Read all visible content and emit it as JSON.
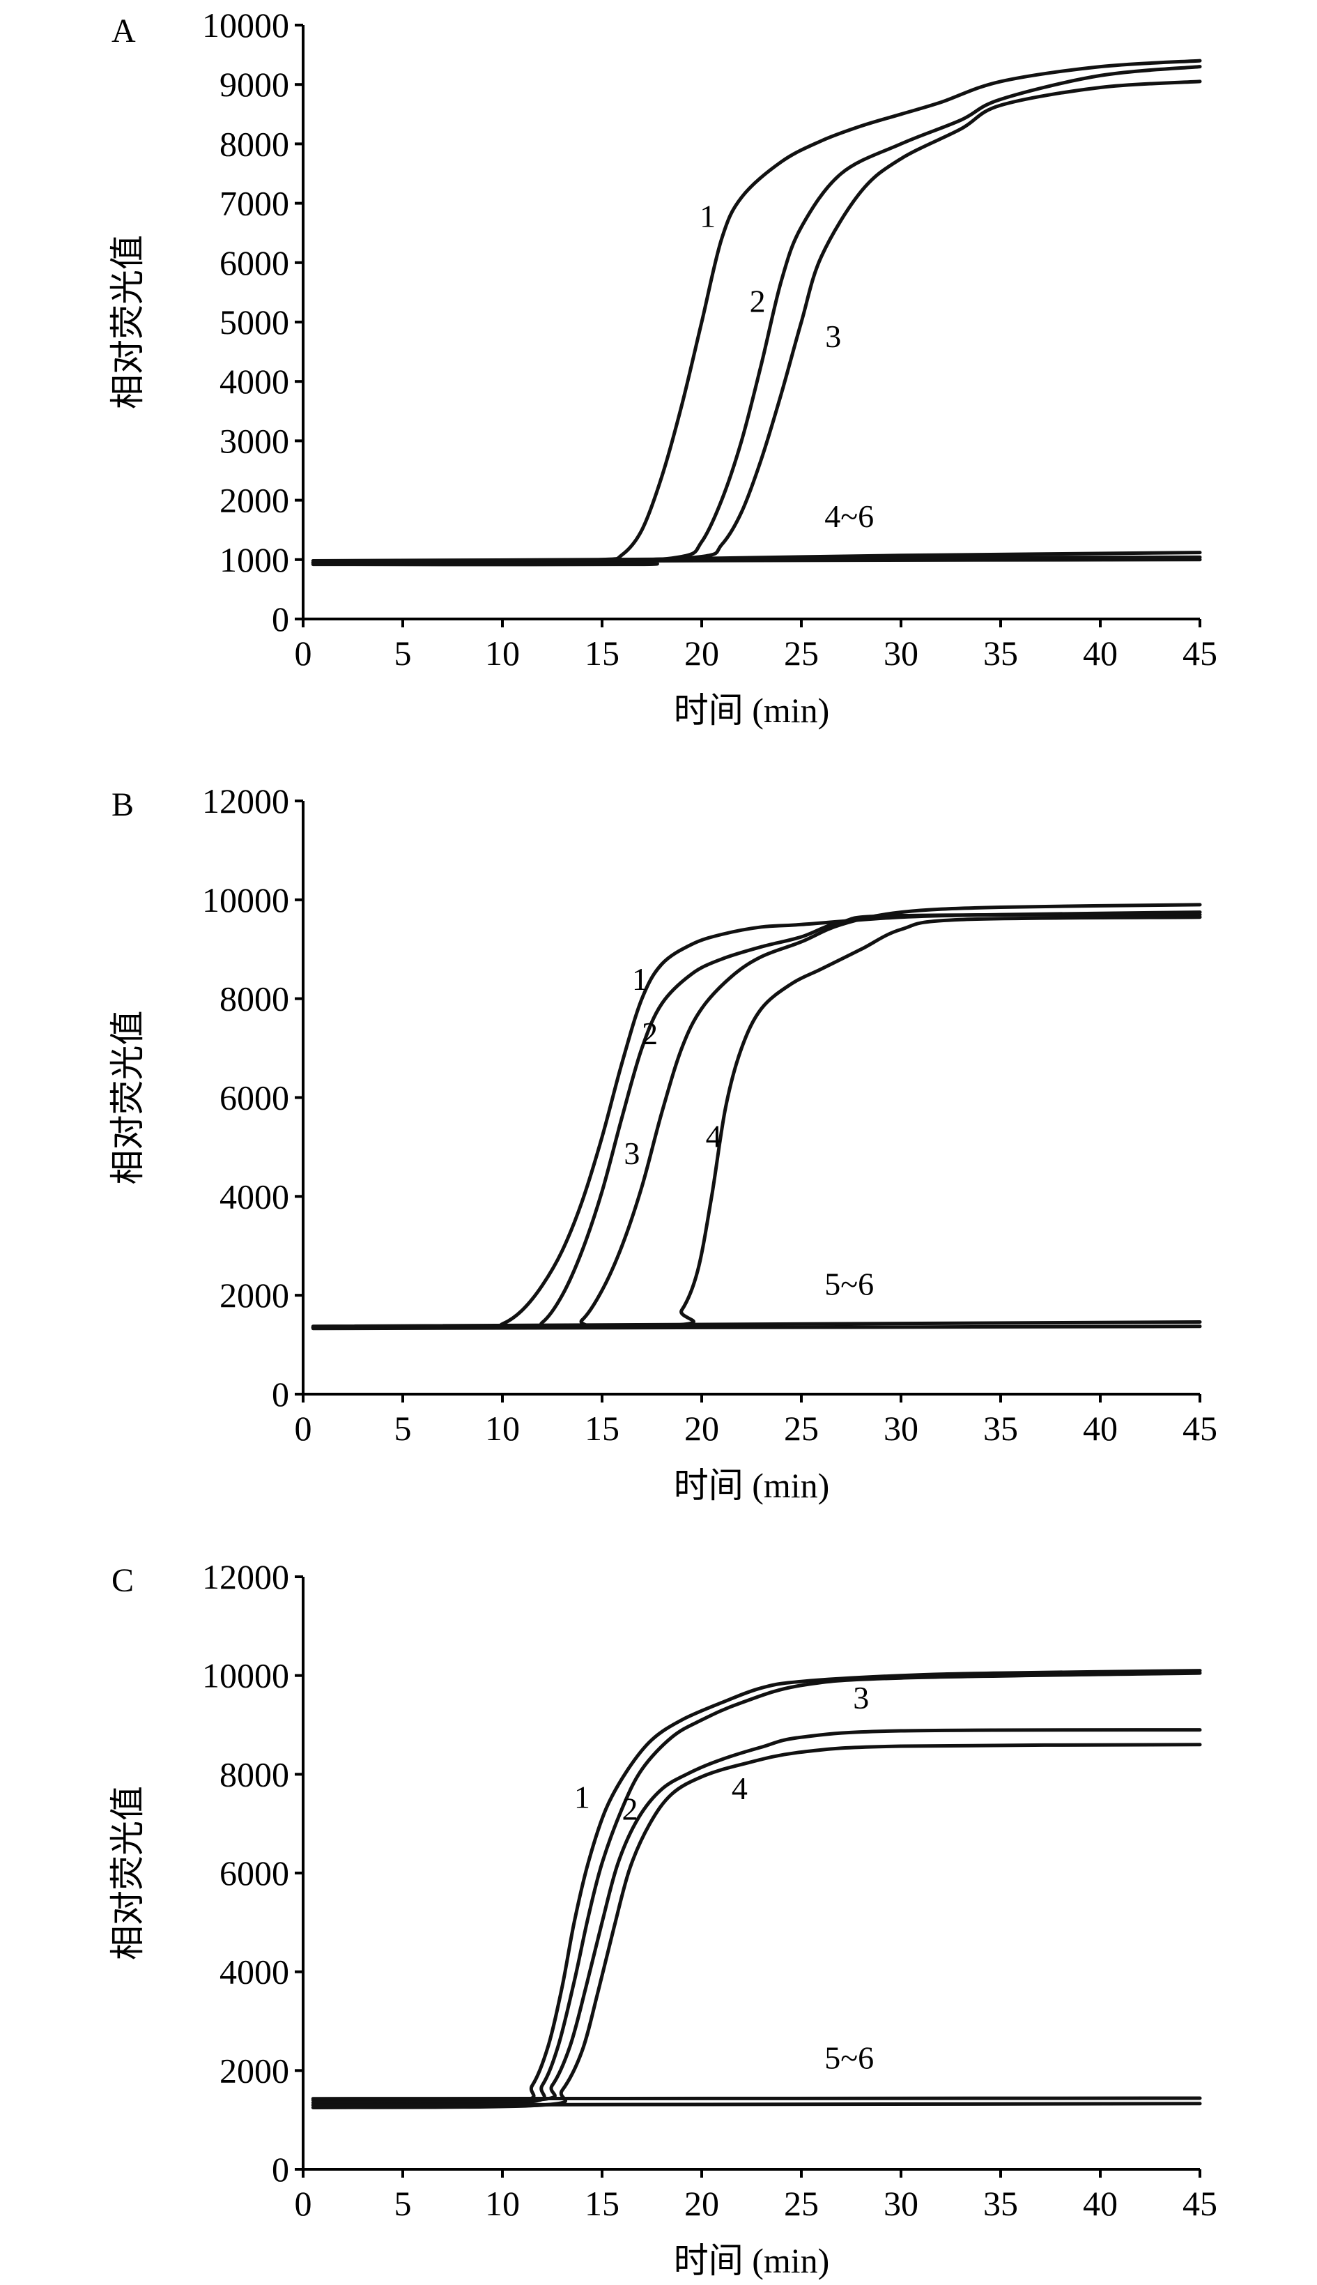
{
  "chart_data": [
    {
      "type": "line",
      "panel": "A",
      "xlabel": "时间 (min)",
      "ylabel": "相对荧光值",
      "xlim": [
        0,
        45
      ],
      "ylim": [
        0,
        10000
      ],
      "xticks": [
        0,
        5,
        10,
        15,
        20,
        25,
        30,
        35,
        40,
        45
      ],
      "yticks": [
        0,
        1000,
        2000,
        3000,
        4000,
        5000,
        6000,
        7000,
        8000,
        9000,
        10000
      ],
      "grid": false,
      "series": [
        {
          "name": "1",
          "points": [
            [
              0.5,
              950
            ],
            [
              10,
              980
            ],
            [
              15,
              1000
            ],
            [
              16,
              1080
            ],
            [
              17,
              1500
            ],
            [
              18,
              2400
            ],
            [
              19,
              3600
            ],
            [
              20,
              5000
            ],
            [
              21,
              6400
            ],
            [
              22,
              7100
            ],
            [
              24,
              7700
            ],
            [
              26,
              8050
            ],
            [
              28,
              8300
            ],
            [
              30,
              8500
            ],
            [
              32,
              8700
            ],
            [
              35,
              9050
            ],
            [
              40,
              9300
            ],
            [
              45,
              9400
            ]
          ]
        },
        {
          "name": "2",
          "points": [
            [
              0.5,
              950
            ],
            [
              15,
              990
            ],
            [
              19,
              1050
            ],
            [
              20,
              1300
            ],
            [
              21,
              2000
            ],
            [
              22,
              3000
            ],
            [
              23,
              4300
            ],
            [
              24,
              5700
            ],
            [
              25,
              6600
            ],
            [
              27,
              7500
            ],
            [
              30,
              8000
            ],
            [
              33,
              8400
            ],
            [
              35,
              8750
            ],
            [
              40,
              9150
            ],
            [
              45,
              9300
            ]
          ]
        },
        {
          "name": "3",
          "points": [
            [
              0.5,
              950
            ],
            [
              15,
              990
            ],
            [
              20,
              1050
            ],
            [
              21,
              1250
            ],
            [
              22,
              1800
            ],
            [
              23,
              2700
            ],
            [
              24,
              3800
            ],
            [
              25,
              5000
            ],
            [
              26,
              6100
            ],
            [
              28,
              7200
            ],
            [
              30,
              7750
            ],
            [
              33,
              8250
            ],
            [
              35,
              8650
            ],
            [
              40,
              8950
            ],
            [
              45,
              9050
            ]
          ]
        },
        {
          "name": "4",
          "points": [
            [
              0.5,
              940
            ],
            [
              15,
              960
            ],
            [
              20,
              1020
            ],
            [
              30,
              1070
            ],
            [
              45,
              1120
            ]
          ]
        },
        {
          "name": "5",
          "points": [
            [
              0.5,
              920
            ],
            [
              17,
              920
            ],
            [
              18,
              980
            ],
            [
              45,
              1000
            ]
          ]
        },
        {
          "name": "6",
          "points": [
            [
              0.5,
              980
            ],
            [
              15,
              1000
            ],
            [
              30,
              1030
            ],
            [
              45,
              1040
            ]
          ]
        }
      ],
      "annotations": [
        {
          "text": "1",
          "x": 20.3,
          "y": 6600
        },
        {
          "text": "2",
          "x": 22.8,
          "y": 5170
        },
        {
          "text": "3",
          "x": 26.6,
          "y": 4580
        },
        {
          "text": "4~6",
          "x": 27.4,
          "y": 1550
        }
      ]
    },
    {
      "type": "line",
      "panel": "B",
      "xlabel": "时间 (min)",
      "ylabel": "相对荧光值",
      "xlim": [
        0,
        45
      ],
      "ylim": [
        0,
        12000
      ],
      "xticks": [
        0,
        5,
        10,
        15,
        20,
        25,
        30,
        35,
        40,
        45
      ],
      "yticks": [
        0,
        2000,
        4000,
        6000,
        8000,
        10000,
        12000
      ],
      "grid": false,
      "series": [
        {
          "name": "1",
          "points": [
            [
              0.5,
              1350
            ],
            [
              9,
              1360
            ],
            [
              10,
              1420
            ],
            [
              11,
              1700
            ],
            [
              12,
              2200
            ],
            [
              13,
              2900
            ],
            [
              14,
              3900
            ],
            [
              15,
              5200
            ],
            [
              16,
              6700
            ],
            [
              17,
              8000
            ],
            [
              18,
              8700
            ],
            [
              19.5,
              9100
            ],
            [
              21,
              9300
            ],
            [
              23,
              9450
            ],
            [
              25,
              9500
            ],
            [
              30,
              9650
            ],
            [
              35,
              9700
            ],
            [
              45,
              9750
            ]
          ]
        },
        {
          "name": "2",
          "points": [
            [
              0.5,
              1350
            ],
            [
              11,
              1360
            ],
            [
              12,
              1450
            ],
            [
              13,
              2000
            ],
            [
              14,
              2900
            ],
            [
              15,
              4100
            ],
            [
              16,
              5600
            ],
            [
              17,
              7000
            ],
            [
              18,
              7900
            ],
            [
              19.5,
              8500
            ],
            [
              21,
              8800
            ],
            [
              23,
              9050
            ],
            [
              25,
              9250
            ],
            [
              27,
              9550
            ],
            [
              30,
              9680
            ],
            [
              45,
              9700
            ]
          ]
        },
        {
          "name": "3",
          "points": [
            [
              0.5,
              1350
            ],
            [
              13,
              1360
            ],
            [
              14,
              1500
            ],
            [
              15,
              2100
            ],
            [
              16,
              3000
            ],
            [
              17,
              4200
            ],
            [
              18,
              5700
            ],
            [
              19,
              7000
            ],
            [
              20,
              7800
            ],
            [
              21.5,
              8450
            ],
            [
              23,
              8850
            ],
            [
              25,
              9150
            ],
            [
              27,
              9500
            ],
            [
              30,
              9750
            ],
            [
              35,
              9850
            ],
            [
              45,
              9900
            ]
          ]
        },
        {
          "name": "4",
          "points": [
            [
              0.5,
              1350
            ],
            [
              18,
              1380
            ],
            [
              19,
              1700
            ],
            [
              19.8,
              2500
            ],
            [
              20.5,
              4000
            ],
            [
              21.2,
              5800
            ],
            [
              22,
              7000
            ],
            [
              23,
              7800
            ],
            [
              24.5,
              8300
            ],
            [
              26,
              8600
            ],
            [
              28,
              9000
            ],
            [
              30,
              9400
            ],
            [
              33,
              9600
            ],
            [
              45,
              9650
            ]
          ]
        },
        {
          "name": "5",
          "points": [
            [
              0.5,
              1330
            ],
            [
              45,
              1370
            ]
          ]
        },
        {
          "name": "6",
          "points": [
            [
              0.5,
              1370
            ],
            [
              45,
              1460
            ]
          ]
        }
      ],
      "annotations": [
        {
          "text": "1",
          "x": 16.9,
          "y": 8180
        },
        {
          "text": "2",
          "x": 17.4,
          "y": 7080
        },
        {
          "text": "3",
          "x": 16.5,
          "y": 4650
        },
        {
          "text": "4",
          "x": 20.6,
          "y": 5000
        },
        {
          "text": "5~6",
          "x": 27.4,
          "y": 2010
        }
      ]
    },
    {
      "type": "line",
      "panel": "C",
      "xlabel": "时间 (min)",
      "ylabel": "相对荧光值",
      "xlim": [
        0,
        45
      ],
      "ylim": [
        0,
        12000
      ],
      "xticks": [
        0,
        5,
        10,
        15,
        20,
        25,
        30,
        35,
        40,
        45
      ],
      "yticks": [
        0,
        2000,
        4000,
        6000,
        8000,
        10000,
        12000
      ],
      "grid": false,
      "series": [
        {
          "name": "1",
          "points": [
            [
              0.5,
              1350
            ],
            [
              10.5,
              1380
            ],
            [
              11.5,
              1700
            ],
            [
              12.3,
              2500
            ],
            [
              13,
              3700
            ],
            [
              13.6,
              5000
            ],
            [
              14.3,
              6200
            ],
            [
              15.2,
              7300
            ],
            [
              16.3,
              8100
            ],
            [
              17.5,
              8700
            ],
            [
              19,
              9100
            ],
            [
              21,
              9450
            ],
            [
              23,
              9750
            ],
            [
              25,
              9880
            ],
            [
              30,
              10000
            ],
            [
              35,
              10050
            ],
            [
              45,
              10100
            ]
          ]
        },
        {
          "name": "2",
          "points": [
            [
              0.5,
              1300
            ],
            [
              11,
              1350
            ],
            [
              12,
              1700
            ],
            [
              12.8,
              2500
            ],
            [
              13.6,
              3800
            ],
            [
              14.3,
              5100
            ],
            [
              15,
              6200
            ],
            [
              16,
              7300
            ],
            [
              17,
              8100
            ],
            [
              18.5,
              8750
            ],
            [
              20,
              9100
            ],
            [
              22,
              9450
            ],
            [
              25,
              9800
            ],
            [
              30,
              9950
            ],
            [
              45,
              10050
            ]
          ]
        },
        {
          "name": "3",
          "points": [
            [
              0.5,
              1400
            ],
            [
              11.5,
              1400
            ],
            [
              12.5,
              1700
            ],
            [
              13.4,
              2500
            ],
            [
              14.2,
              3700
            ],
            [
              15,
              5000
            ],
            [
              15.8,
              6200
            ],
            [
              16.8,
              7100
            ],
            [
              18,
              7700
            ],
            [
              19.5,
              8050
            ],
            [
              21,
              8300
            ],
            [
              23,
              8550
            ],
            [
              25,
              8750
            ],
            [
              30,
              8880
            ],
            [
              45,
              8900
            ]
          ]
        },
        {
          "name": "4",
          "points": [
            [
              0.5,
              1250
            ],
            [
              12,
              1300
            ],
            [
              13,
              1600
            ],
            [
              14,
              2400
            ],
            [
              14.8,
              3600
            ],
            [
              15.6,
              4900
            ],
            [
              16.4,
              6100
            ],
            [
              17.4,
              7000
            ],
            [
              18.5,
              7600
            ],
            [
              20,
              7950
            ],
            [
              22,
              8200
            ],
            [
              25,
              8450
            ],
            [
              30,
              8570
            ],
            [
              45,
              8600
            ]
          ]
        },
        {
          "name": "5",
          "points": [
            [
              0.5,
              1300
            ],
            [
              45,
              1330
            ]
          ]
        },
        {
          "name": "6",
          "points": [
            [
              0.5,
              1430
            ],
            [
              45,
              1440
            ]
          ]
        }
      ],
      "annotations": [
        {
          "text": "1",
          "x": 14.0,
          "y": 7320
        },
        {
          "text": "2",
          "x": 16.4,
          "y": 7080
        },
        {
          "text": "3",
          "x": 28.0,
          "y": 9330
        },
        {
          "text": "4",
          "x": 21.9,
          "y": 7500
        },
        {
          "text": "5~6",
          "x": 27.4,
          "y": 2040
        }
      ]
    }
  ]
}
